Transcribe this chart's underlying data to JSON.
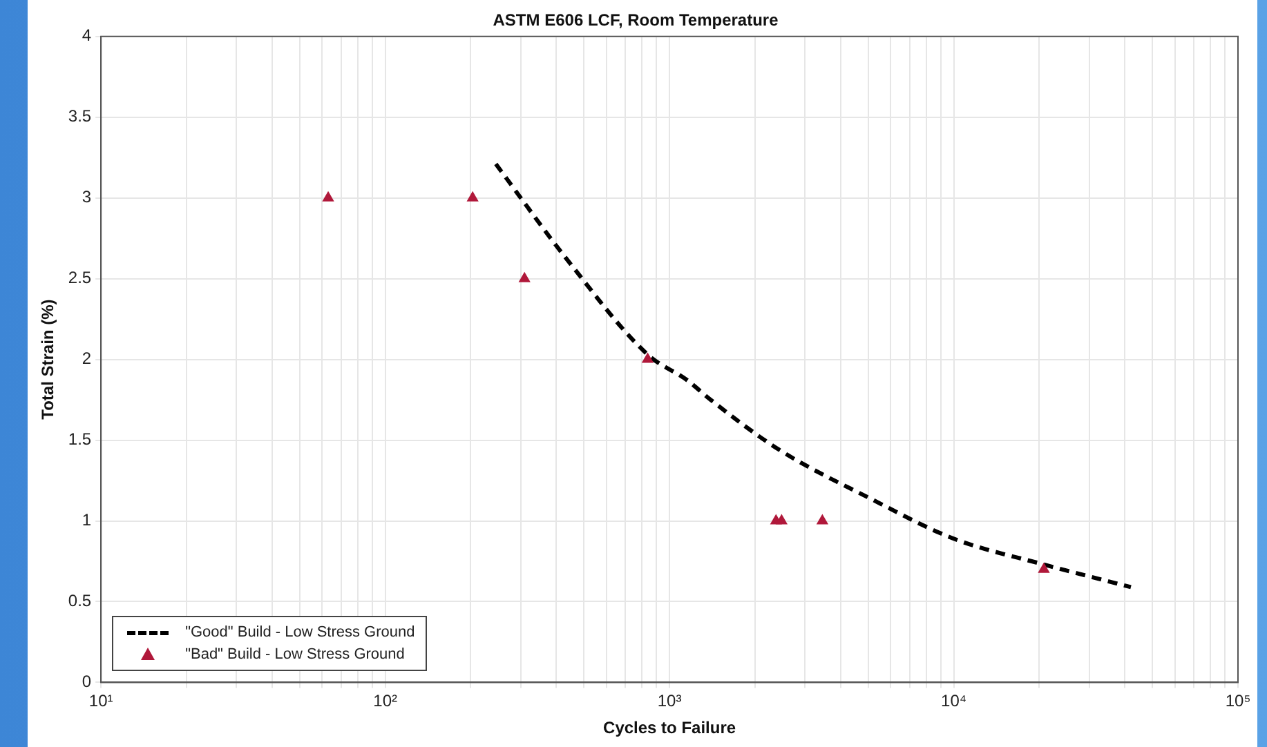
{
  "chart_data": {
    "type": "scatter",
    "title": "ASTM E606 LCF, Room Temperature",
    "xlabel": "Cycles to Failure",
    "ylabel": "Total Strain (%)",
    "series": [
      {
        "name": "\"Good\" Build - Low Stress Ground",
        "type": "line",
        "color": "#000000",
        "line_style": "dashed",
        "marker": "none",
        "x": [
          245,
          440,
          838,
          1157,
          1396,
          2434,
          5070,
          10000,
          20750,
          42000
        ],
        "values": [
          3.21,
          2.61,
          2.03,
          1.87,
          1.75,
          1.44,
          1.14,
          0.89,
          0.73,
          0.59
        ]
      },
      {
        "name": "\"Bad\" Build - Low Stress Ground",
        "type": "scatter",
        "color": "#b0183a",
        "marker": "triangle",
        "x": [
          63,
          203,
          309,
          838,
          2370,
          2480,
          3450,
          20750
        ],
        "values": [
          3,
          3,
          2.5,
          2,
          1,
          1,
          1,
          0.7
        ]
      }
    ],
    "log": "x",
    "xlim": [
      10,
      100000
    ],
    "ylim": [
      0,
      4
    ],
    "xticks": [
      {
        "value": 10,
        "label": "10¹"
      },
      {
        "value": 20,
        "label": null
      },
      {
        "value": 30,
        "label": null
      },
      {
        "value": 40,
        "label": null
      },
      {
        "value": 50,
        "label": null
      },
      {
        "value": 60,
        "label": null
      },
      {
        "value": 70,
        "label": null
      },
      {
        "value": 80,
        "label": null
      },
      {
        "value": 90,
        "label": null
      },
      {
        "value": 100,
        "label": "10²"
      },
      {
        "value": 200,
        "label": null
      },
      {
        "value": 300,
        "label": null
      },
      {
        "value": 400,
        "label": null
      },
      {
        "value": 500,
        "label": null
      },
      {
        "value": 600,
        "label": null
      },
      {
        "value": 700,
        "label": null
      },
      {
        "value": 800,
        "label": null
      },
      {
        "value": 900,
        "label": null
      },
      {
        "value": 1000,
        "label": "10³"
      },
      {
        "value": 2000,
        "label": null
      },
      {
        "value": 3000,
        "label": null
      },
      {
        "value": 4000,
        "label": null
      },
      {
        "value": 5000,
        "label": null
      },
      {
        "value": 6000,
        "label": null
      },
      {
        "value": 7000,
        "label": null
      },
      {
        "value": 8000,
        "label": null
      },
      {
        "value": 9000,
        "label": null
      },
      {
        "value": 10000,
        "label": "10⁴"
      },
      {
        "value": 20000,
        "label": null
      },
      {
        "value": 30000,
        "label": null
      },
      {
        "value": 40000,
        "label": null
      },
      {
        "value": 50000,
        "label": null
      },
      {
        "value": 60000,
        "label": null
      },
      {
        "value": 70000,
        "label": null
      },
      {
        "value": 80000,
        "label": null
      },
      {
        "value": 90000,
        "label": null
      },
      {
        "value": 100000,
        "label": "10⁵"
      }
    ],
    "yticks": [
      0,
      0.5,
      1,
      1.5,
      2,
      2.5,
      3,
      3.5,
      4
    ],
    "grid": true,
    "legend": "bottom left"
  }
}
